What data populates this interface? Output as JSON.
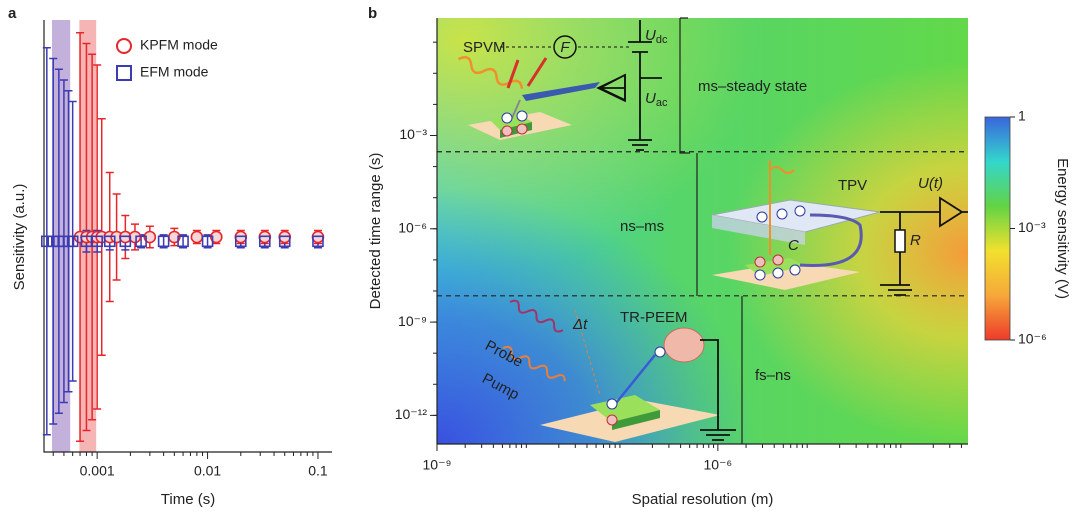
{
  "chart_data": [
    {
      "type": "scatter",
      "panel": "a",
      "xlabel": "Time (s)",
      "ylabel": "Sensitivity (a.u.)",
      "xscale": "log",
      "xlim": [
        0.00033,
        0.134
      ],
      "xticks": [
        0.001,
        0.01,
        0.1
      ],
      "ylim": [
        -1,
        1
      ],
      "legend": "upper right",
      "bands": [
        {
          "color": "#b9a3d6",
          "range": [
            0.00039,
            0.00057
          ]
        },
        {
          "color": "#f5a8a8",
          "range": [
            0.00069,
            0.00098
          ]
        }
      ],
      "series": [
        {
          "name": "KPFM mode",
          "color": "#e8262a",
          "marker": "circle",
          "x": [
            0.0007,
            0.0008,
            0.0009,
            0.001,
            0.0011,
            0.0013,
            0.0015,
            0.0018,
            0.0022,
            0.003,
            0.005,
            0.008,
            0.012,
            0.02,
            0.033,
            0.05,
            0.1
          ],
          "values": [
            0,
            0,
            0,
            0,
            0,
            0,
            0,
            0,
            0,
            0,
            0,
            0,
            0,
            0,
            0,
            0,
            0
          ],
          "errors": [
            0.95,
            0.9,
            0.85,
            0.8,
            0.55,
            0.3,
            0.2,
            0.1,
            0.06,
            0.05,
            0.04,
            0.03,
            0.03,
            0.03,
            0.03,
            0.03,
            0.03
          ]
        },
        {
          "name": "EFM mode",
          "color": "#3b3bb3",
          "marker": "square",
          "x": [
            0.00035,
            0.0004,
            0.00045,
            0.0005,
            0.00055,
            0.0006,
            0.0008,
            0.001,
            0.0013,
            0.0018,
            0.0025,
            0.004,
            0.006,
            0.01,
            0.02,
            0.033,
            0.05,
            0.1
          ],
          "values": [
            -0.02,
            -0.02,
            -0.02,
            -0.02,
            -0.02,
            -0.02,
            -0.02,
            -0.02,
            -0.02,
            -0.02,
            -0.02,
            -0.02,
            -0.02,
            -0.02,
            -0.02,
            -0.02,
            -0.02,
            -0.02
          ],
          "errors": [
            0.9,
            0.85,
            0.8,
            0.75,
            0.7,
            0.65,
            0.05,
            0.05,
            0.04,
            0.04,
            0.03,
            0.03,
            0.03,
            0.03,
            0.03,
            0.03,
            0.03,
            0.03
          ]
        }
      ]
    },
    {
      "type": "heatmap",
      "panel": "b",
      "xlabel": "Spatial resolution (m)",
      "ylabel": "Detected time range (s)",
      "xscale": "log",
      "yscale": "log",
      "xlim": [
        1e-09,
        0.00047
      ],
      "ylim": [
        1.2e-13,
        6
      ],
      "xticks": [
        {
          "value": 1e-09,
          "label": "10⁻⁹"
        },
        {
          "value": 1e-06,
          "label": "10⁻⁶"
        }
      ],
      "yticks": [
        {
          "value": 1e-12,
          "label": "10⁻¹²"
        },
        {
          "value": 1e-09,
          "label": "10⁻⁹"
        },
        {
          "value": 1e-06,
          "label": "10⁻⁶"
        },
        {
          "value": 0.001,
          "label": "10⁻³"
        }
      ],
      "colorbar": {
        "label": "Energy sensitivity (V)",
        "scale": "log",
        "lim": [
          1e-06,
          1
        ],
        "ticks": [
          {
            "value": 1e-06,
            "label": "10⁻⁶"
          },
          {
            "value": 0.001,
            "label": "10⁻³"
          },
          1
        ],
        "colors": [
          "#ee3a2a",
          "#f6a83a",
          "#f2e02e",
          "#62d444",
          "#33d6cc",
          "#3a66dd"
        ]
      },
      "regions": [
        {
          "label": "ms–steady state",
          "range": [
            0.0003,
            6
          ]
        },
        {
          "label": "ns–ms",
          "range": [
            7e-09,
            0.0003
          ]
        },
        {
          "label": "fs–ns",
          "range": [
            1.2e-13,
            7e-09
          ]
        }
      ],
      "annotations": {
        "spvm": "SPVM",
        "force": "F",
        "udc": {
          "symbol": "U",
          "sub": "dc"
        },
        "uac": {
          "symbol": "U",
          "sub": "ac"
        },
        "tpv": "TPV",
        "ut": "U(t)",
        "r": "R",
        "c": "C",
        "trpeem": "TR-PEEM",
        "probe": "Probe",
        "pump": "Pump",
        "dt": "Δt"
      }
    }
  ]
}
